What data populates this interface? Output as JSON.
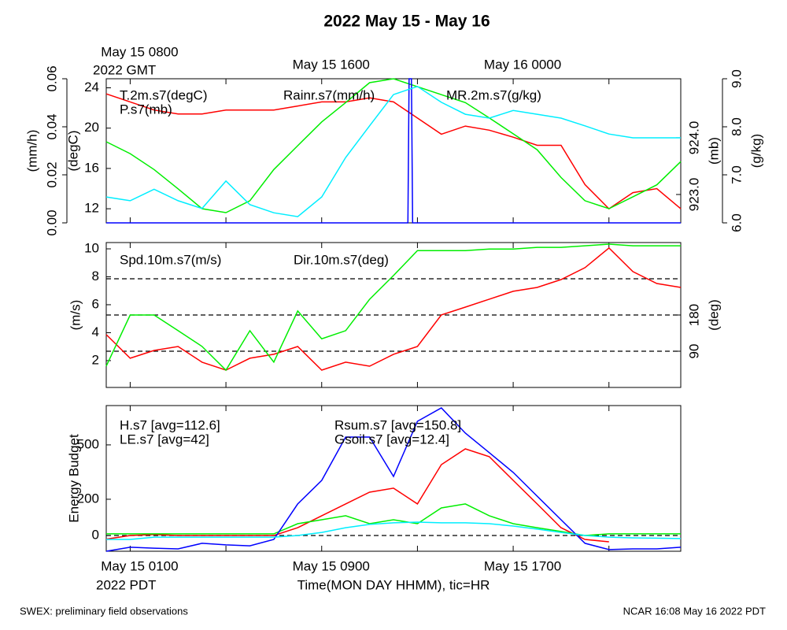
{
  "chart_data": {
    "type": "line",
    "title": "2022 May 15 - May 16",
    "xlabel": "Time(MON DAY HHMM), tic=HR",
    "x_axis_note": "2022 PDT",
    "top_axis_note": "2022 GMT",
    "footer_left": "SWEX: preliminary field observations",
    "footer_right": "NCAR 16:08 May 16 2022 PDT",
    "xlim": [
      0,
      24
    ],
    "xticks": [
      {
        "value": 1,
        "label": "May 15 0100"
      },
      {
        "value": 9,
        "label": "May 15 0900"
      },
      {
        "value": 17,
        "label": "May 15 1700"
      }
    ],
    "x_minor_ticks": [
      5,
      13,
      21
    ],
    "top_xticks": [
      {
        "value": 1,
        "label": "May 15 0800"
      },
      {
        "value": 9,
        "label": "May 15 1600"
      },
      {
        "value": 17,
        "label": "May 16 0000"
      }
    ],
    "x": [
      0,
      1,
      2,
      3,
      4,
      5,
      6,
      7,
      8,
      9,
      10,
      11,
      12,
      13,
      14,
      15,
      16,
      17,
      18,
      19,
      20,
      21,
      22,
      23,
      24
    ],
    "panels": [
      {
        "axes": [
          {
            "label": "(mm/h)",
            "lim": [
              0,
              0.06
            ],
            "ticks": [
              {
                "value": 0,
                "label": "0.00"
              },
              {
                "value": 0.02,
                "label": "0.02"
              },
              {
                "value": 0.04,
                "label": "0.04"
              },
              {
                "value": 0.06,
                "label": "0.06"
              }
            ]
          },
          {
            "label": "(degC)",
            "lim": [
              10.6,
              24.9
            ],
            "ticks": [
              12,
              16,
              20,
              24
            ]
          },
          {
            "label": "(mb)",
            "lim": [
              922.5,
              925.04
            ],
            "ticks": [
              {
                "value": 923,
                "label": "923.0"
              },
              {
                "value": 924,
                "label": "924.0"
              }
            ]
          },
          {
            "label": "(g/kg)",
            "lim": [
              6,
              9
            ],
            "ticks": [
              {
                "value": 6,
                "label": "6.0"
              },
              {
                "value": 7,
                "label": "7.0"
              },
              {
                "value": 8,
                "label": "8.0"
              },
              {
                "value": 9,
                "label": "9.0"
              }
            ]
          }
        ],
        "series": [
          {
            "name": "T.2m.s7(degC)",
            "color": "#ff0000",
            "axis": 1,
            "values": [
              23.4,
              22.6,
              21.8,
              21.4,
              21.4,
              21.8,
              21.8,
              21.8,
              22.2,
              22.6,
              22.6,
              23.0,
              22.6,
              21.0,
              19.4,
              20.2,
              19.8,
              19.1,
              18.3,
              18.3,
              14.4,
              12.0,
              13.6,
              14.0,
              12.0
            ]
          },
          {
            "name": "P.s7(mb)",
            "color": "#00ee00",
            "axis": 2,
            "values": [
              923.93,
              923.72,
              923.44,
              923.1,
              922.75,
              922.68,
              922.89,
              923.44,
              923.86,
              924.28,
              924.62,
              924.97,
              925.04,
              924.9,
              924.76,
              924.62,
              924.35,
              924.07,
              923.79,
              923.3,
              922.89,
              922.75,
              922.96,
              923.17,
              923.58
            ]
          },
          {
            "name": "Rainr.s7(mm/h)",
            "color": "#0000ff",
            "axis": 0,
            "x": [
              0,
              12.6,
              12.65,
              12.75,
              12.8,
              24
            ],
            "values": [
              0,
              0,
              0.06,
              0.06,
              0,
              0
            ]
          },
          {
            "name": "MR.2m.s7(g/kg)",
            "color": "#00eeff",
            "axis": 3,
            "values": [
              6.54,
              6.46,
              6.7,
              6.46,
              6.3,
              6.87,
              6.38,
              6.21,
              6.13,
              6.54,
              7.36,
              8.02,
              8.67,
              8.84,
              8.51,
              8.26,
              8.18,
              8.34,
              8.26,
              8.18,
              8.02,
              7.85,
              7.77,
              7.77,
              7.77
            ]
          }
        ]
      },
      {
        "axes": [
          {
            "label": "(m/s)",
            "lim": [
              0.08,
              10.45
            ],
            "ticks": [
              2,
              4,
              6,
              8,
              10
            ]
          },
          {
            "label": "(deg)",
            "lim": [
              0,
              360
            ],
            "ticks": [
              90,
              180
            ],
            "gridlines": [
              90,
              180,
              270
            ]
          }
        ],
        "series": [
          {
            "name": "Spd.10m.s7(m/s)",
            "color": "#ff0000",
            "axis": 0,
            "values": [
              3.86,
              2.17,
              2.73,
              3.01,
              1.89,
              1.32,
              2.17,
              2.45,
              3.01,
              1.32,
              1.89,
              1.6,
              2.45,
              3.01,
              5.27,
              5.83,
              6.4,
              6.96,
              7.24,
              7.8,
              8.65,
              10.06,
              8.37,
              7.52,
              7.24
            ]
          },
          {
            "name": "Dir.10m.s7(deg)",
            "color": "#00ee00",
            "axis": 1,
            "values": [
              53,
              180,
              180,
              141,
              102,
              43,
              141,
              63,
              190,
              121,
              141,
              219,
              278,
              340,
              340,
              340,
              344,
              344,
              348,
              348,
              352,
              356,
              352,
              352,
              352
            ]
          }
        ]
      },
      {
        "axes": [
          {
            "label": "Energy Budget",
            "lim": [
              -87,
              717
            ],
            "ticks": [
              0,
              200,
              500
            ],
            "gridlines": [
              0
            ]
          }
        ],
        "series": [
          {
            "name": "H.s7 [avg=112.6]",
            "color": "#ff0000",
            "axis": 0,
            "values": [
              -20,
              0,
              5,
              0,
              0,
              0,
              0,
              0,
              43,
              109,
              174,
              239,
              261,
              174,
              391,
              478,
              435,
              304,
              174,
              43,
              -22,
              -35,
              null,
              null,
              -30
            ]
          },
          {
            "name": "LE.s7 [avg=42]",
            "color": "#00ee00",
            "axis": 0,
            "values": [
              9,
              9,
              9,
              9,
              9,
              9,
              9,
              9,
              65,
              87,
              109,
              65,
              87,
              65,
              152,
              174,
              109,
              65,
              43,
              22,
              0,
              9,
              9,
              9,
              9
            ]
          },
          {
            "name": "Rsum.s7 [avg=150.8]",
            "color": "#0000ff",
            "axis": 0,
            "values": [
              -87,
              -65,
              -70,
              -74,
              -43,
              -52,
              -57,
              -22,
              174,
              304,
              543,
              543,
              326,
              630,
              704,
              565,
              457,
              348,
              217,
              87,
              -43,
              -78,
              -74,
              -74,
              -65
            ]
          },
          {
            "name": "Gsoil.s7 [avg=12.4]",
            "color": "#00eeff",
            "axis": 0,
            "values": [
              -22,
              -22,
              -9,
              -9,
              -9,
              -9,
              -9,
              -9,
              0,
              17,
              43,
              61,
              70,
              74,
              70,
              70,
              65,
              52,
              35,
              17,
              0,
              -9,
              -13,
              -15,
              -17
            ]
          }
        ]
      }
    ]
  }
}
